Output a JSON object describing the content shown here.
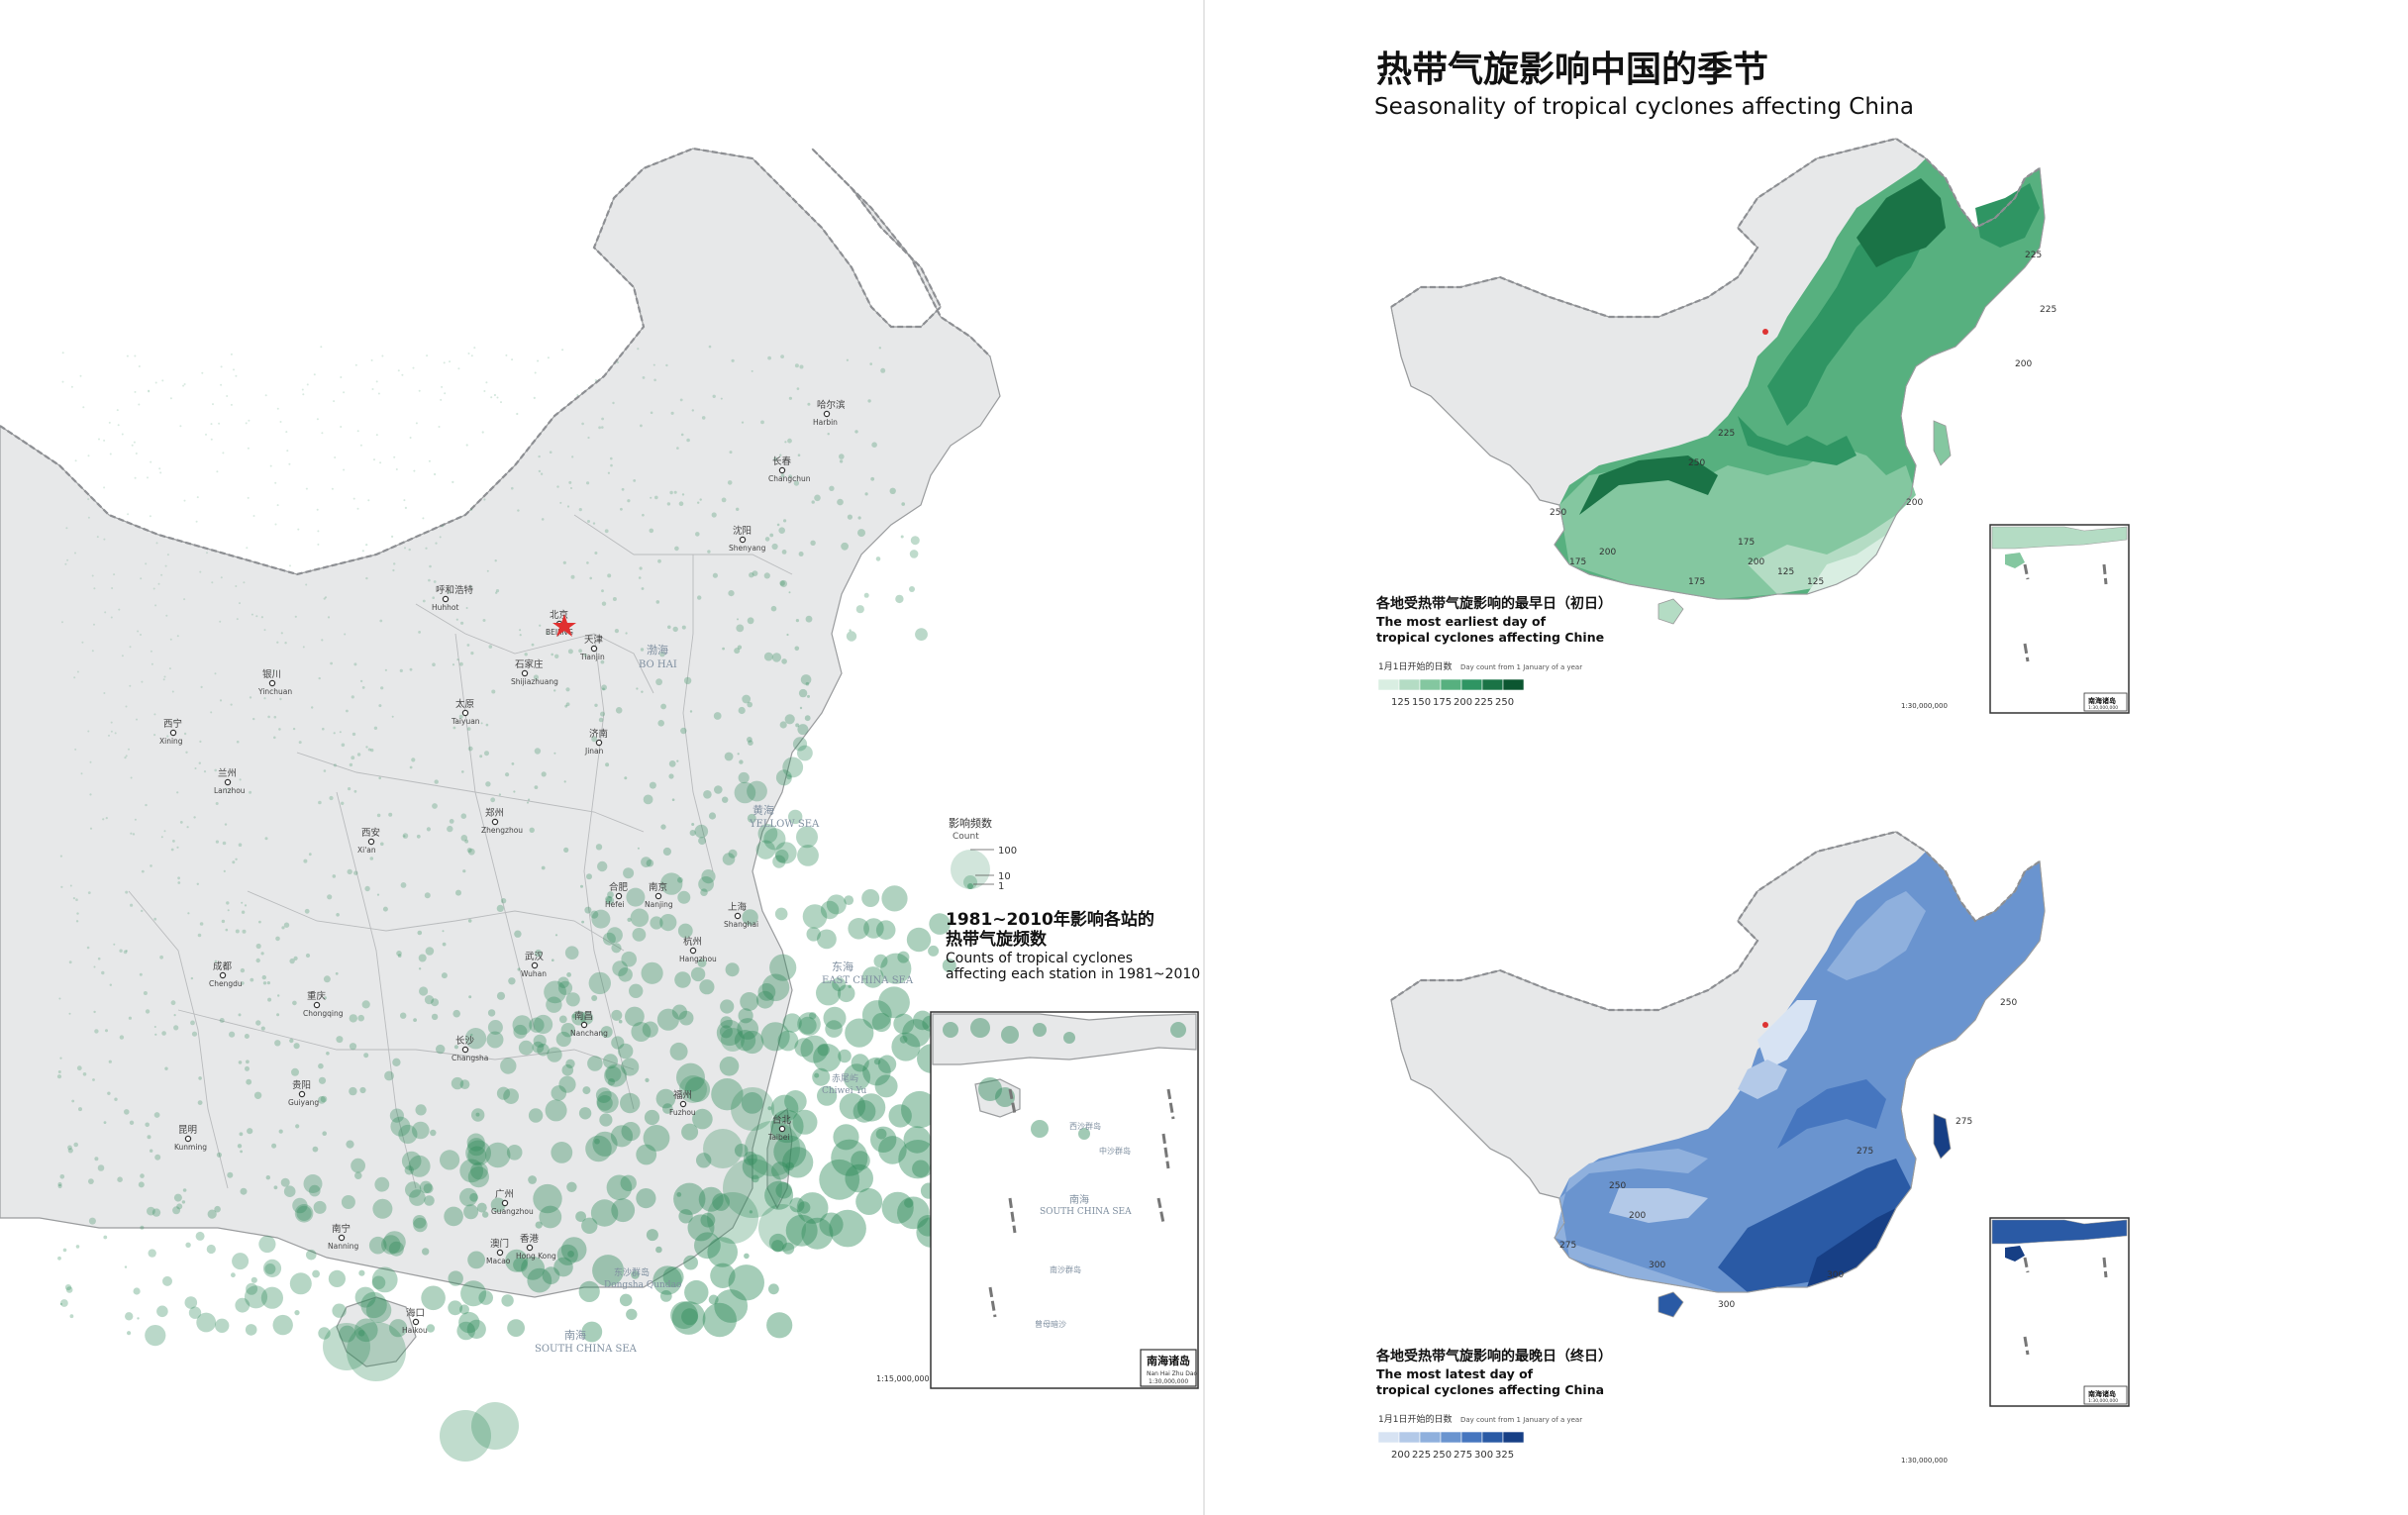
{
  "title": {
    "zh": "热带气旋影响中国的季节",
    "en": "Seasonality of tropical cyclones affecting China"
  },
  "map_count": {
    "title_zh": "1981~2010年影响各站的热带气旋频数",
    "title_zh_1": "1981~2010年影响各站的",
    "title_zh_2": "热带气旋频数",
    "title_en_1": "Counts of tropical cyclones",
    "title_en_2": "affecting each station in 1981~2010",
    "legend_title_zh": "影响频数",
    "legend_title_en": "Count",
    "legend_values": [
      "100",
      "10",
      "1"
    ],
    "scale": "1:15,000,000",
    "inset_label_zh": "南海诸岛",
    "inset_label_en": "Nan Hai Zhu Dao",
    "inset_scale": "1:30,000,000",
    "color": "#2f8a5a"
  },
  "map_earliest": {
    "title_zh": "各地受热带气旋影响的最早日（初日）",
    "title_en_1": "The most earliest day of",
    "title_en_2": "tropical cyclones affecting Chine",
    "legend_caption_zh": "1月1日开始的日数",
    "legend_caption_en": "Day count from 1 January of a year",
    "legend_values": [
      "125",
      "150",
      "175",
      "200",
      "225",
      "250"
    ],
    "legend_colors": [
      "#d9eee2",
      "#b4dcc4",
      "#84c7a0",
      "#57b07f",
      "#2f9563",
      "#1a7346",
      "#0c5631"
    ],
    "contour_labels": [
      "225",
      "225",
      "200",
      "225",
      "250",
      "200",
      "175",
      "200",
      "175",
      "125",
      "125",
      "200",
      "175",
      "250"
    ],
    "scale": "1:30,000,000",
    "inset_label_zh": "南海诸岛",
    "inset_scale": "1:30,000,000"
  },
  "map_latest": {
    "title_zh": "各地受热带气旋影响的最晚日（终日）",
    "title_en_1": "The most latest day of",
    "title_en_2": "tropical cyclones affecting China",
    "legend_caption_zh": "1月1日开始的日数",
    "legend_caption_en": "Day count from 1 January of a year",
    "legend_values": [
      "200",
      "225",
      "250",
      "275",
      "300",
      "325"
    ],
    "legend_colors": [
      "#d7e3f3",
      "#b3c9e8",
      "#8fb0dd",
      "#6a94cf",
      "#4676bf",
      "#2a5aa5",
      "#173f85"
    ],
    "contour_labels": [
      "250",
      "275",
      "275",
      "300",
      "200",
      "275",
      "300",
      "300",
      "250"
    ],
    "scale": "1:30,000,000",
    "inset_label_zh": "南海诸岛",
    "inset_scale": "1:30,000,000"
  },
  "cities": [
    {
      "zh": "哈尔滨",
      "en": "Harbin"
    },
    {
      "zh": "长春",
      "en": "Changchun"
    },
    {
      "zh": "沈阳",
      "en": "Shenyang"
    },
    {
      "zh": "呼和浩特",
      "en": "Huhhot"
    },
    {
      "zh": "北京",
      "en": "BEIJING"
    },
    {
      "zh": "天津",
      "en": "Tianjin"
    },
    {
      "zh": "石家庄",
      "en": "Shijiazhuang"
    },
    {
      "zh": "太原",
      "en": "Taiyuan"
    },
    {
      "zh": "银川",
      "en": "Yinchuan"
    },
    {
      "zh": "西宁",
      "en": "Xining"
    },
    {
      "zh": "兰州",
      "en": "Lanzhou"
    },
    {
      "zh": "济南",
      "en": "Jinan"
    },
    {
      "zh": "郑州",
      "en": "Zhengzhou"
    },
    {
      "zh": "西安",
      "en": "Xi'an"
    },
    {
      "zh": "合肥",
      "en": "Hefei"
    },
    {
      "zh": "南京",
      "en": "Nanjing"
    },
    {
      "zh": "上海",
      "en": "Shanghai"
    },
    {
      "zh": "杭州",
      "en": "Hangzhou"
    },
    {
      "zh": "武汉",
      "en": "Wuhan"
    },
    {
      "zh": "成都",
      "en": "Chengdu"
    },
    {
      "zh": "重庆",
      "en": "Chongqing"
    },
    {
      "zh": "长沙",
      "en": "Changsha"
    },
    {
      "zh": "南昌",
      "en": "Nanchang"
    },
    {
      "zh": "福州",
      "en": "Fuzhou"
    },
    {
      "zh": "贵阳",
      "en": "Guiyang"
    },
    {
      "zh": "昆明",
      "en": "Kunming"
    },
    {
      "zh": "南宁",
      "en": "Nanning"
    },
    {
      "zh": "广州",
      "en": "Guangzhou"
    },
    {
      "zh": "澳门",
      "en": "Macao"
    },
    {
      "zh": "香港",
      "en": "Hong Kong"
    },
    {
      "zh": "海口",
      "en": "Haikou"
    },
    {
      "zh": "台北",
      "en": "Taibei"
    }
  ],
  "seas": [
    {
      "zh": "渤海",
      "en": "BO HAI"
    },
    {
      "zh": "黄海",
      "en": "YELLOW SEA"
    },
    {
      "zh": "东海",
      "en": "EAST CHINA SEA"
    },
    {
      "zh": "南海",
      "en": "SOUTH CHINA SEA"
    },
    {
      "zh": "东沙群岛",
      "en": "Dongsha Qundao"
    },
    {
      "zh": "海南岛",
      "en": "Hainan Dao"
    },
    {
      "zh": "台湾岛",
      "en": "Taiwan Dao"
    },
    {
      "zh": "钓鱼岛",
      "en": "Diaoyu Dao"
    },
    {
      "zh": "赤尾屿",
      "en": "Chiwei Yu"
    },
    {
      "zh": "西沙群岛",
      "en": "Xisha Qundao"
    },
    {
      "zh": "中沙群岛",
      "en": "Zhongsha Qundao"
    },
    {
      "zh": "南沙群岛",
      "en": "Nansha Qundao"
    },
    {
      "zh": "黄岩岛",
      "en": "Huangyan Dao"
    },
    {
      "zh": "曾母暗沙",
      "en": "Zengmu Ansha"
    }
  ]
}
